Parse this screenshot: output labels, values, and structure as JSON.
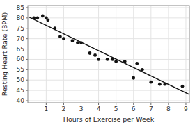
{
  "chart_data": {
    "type": "scatter",
    "xlabel": "Hours of Exercise per Week",
    "ylabel": "Resting Heart Rate (BPM)",
    "series": [
      {
        "type": "scatter",
        "marker": "circle",
        "color": "#111111",
        "x": [
          0.3,
          0.5,
          0.8,
          1.0,
          1.1,
          1.5,
          1.8,
          2.0,
          2.5,
          2.8,
          3.0,
          3.5,
          3.8,
          4.0,
          4.5,
          4.8,
          5.0,
          5.5,
          6.0,
          6.2,
          6.5,
          7.0,
          7.5,
          7.8,
          8.8
        ],
        "values": [
          80,
          80,
          81,
          80,
          79,
          75,
          71,
          70,
          69,
          68,
          68,
          63,
          62,
          60,
          60,
          60,
          59,
          59,
          51,
          58,
          55,
          49,
          48,
          48,
          47
        ]
      },
      {
        "type": "line",
        "line_style": "solid",
        "color": "#111111",
        "x": [
          0,
          9.2
        ],
        "values": [
          80.5,
          43
        ]
      }
    ],
    "xlim": [
      -0.05,
      9.2
    ],
    "ylim": [
      39,
      86
    ],
    "xticks": [
      1,
      2,
      3,
      4,
      5,
      6,
      7,
      8,
      9
    ],
    "yticks": [
      40,
      45,
      50,
      55,
      60,
      65,
      70,
      75,
      80,
      85
    ],
    "grid": true
  }
}
